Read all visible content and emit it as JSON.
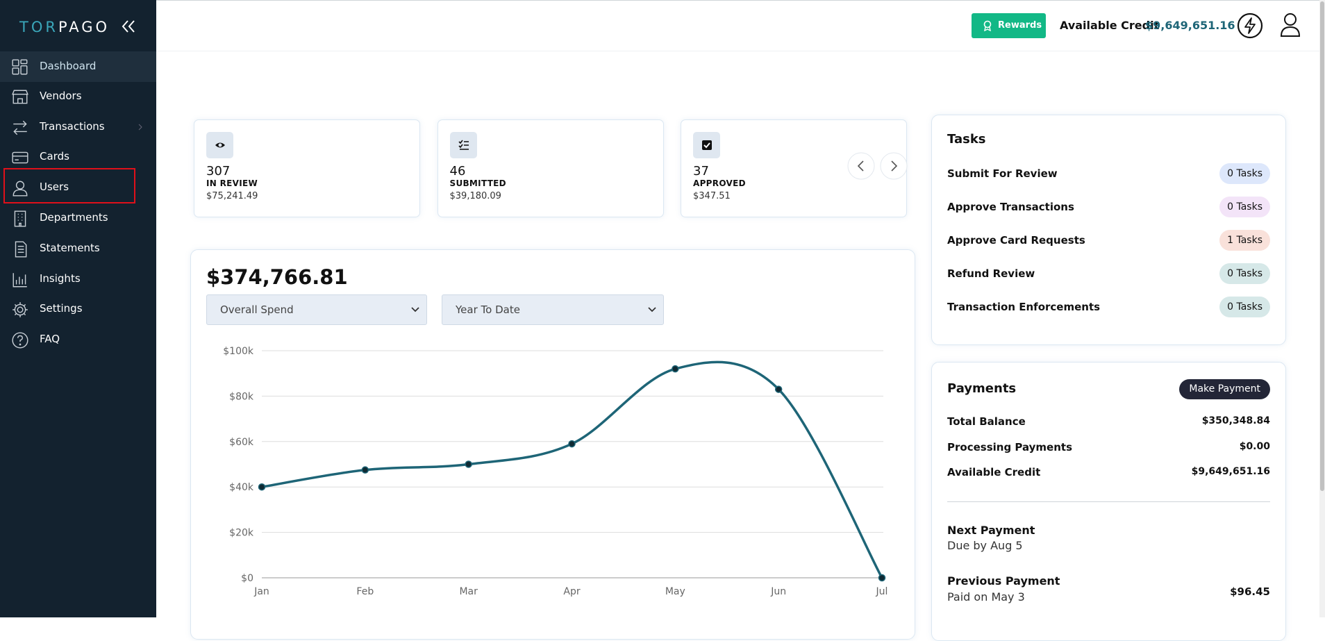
{
  "sidebar": {
    "logo": "TORPAGO",
    "items": [
      {
        "label": "Dashboard",
        "active": true
      },
      {
        "label": "Vendors"
      },
      {
        "label": "Transactions"
      },
      {
        "label": "Cards"
      },
      {
        "label": "Users"
      },
      {
        "label": "Departments"
      },
      {
        "label": "Statements"
      },
      {
        "label": "Insights"
      },
      {
        "label": "Settings"
      },
      {
        "label": "FAQ"
      }
    ]
  },
  "header": {
    "rewards": "Rewards",
    "credit_label": "Available Credit",
    "credit_value": "$9,649,651.16"
  },
  "summary_cards": [
    {
      "count": "307",
      "label": "IN REVIEW",
      "amount": "$75,241.49"
    },
    {
      "count": "46",
      "label": "SUBMITTED",
      "amount": "$39,180.09"
    },
    {
      "count": "37",
      "label": "APPROVED",
      "amount": "$347.51"
    }
  ],
  "spend_panel": {
    "total": "$374,766.81",
    "filters": [
      "Overall Spend",
      "Year To Date"
    ]
  },
  "chart_data": {
    "type": "line",
    "categories": [
      "Jan",
      "Feb",
      "Mar",
      "Apr",
      "May",
      "Jun",
      "Jul"
    ],
    "values": [
      40000,
      47500,
      50000,
      59000,
      92000,
      83000,
      0
    ],
    "color": "#1e6577",
    "ylim": [
      0,
      100000
    ],
    "yticks": [
      {
        "value": 0,
        "label": "$0"
      },
      {
        "value": 20000,
        "label": "$20k"
      },
      {
        "value": 40000,
        "label": "$40k"
      },
      {
        "value": 60000,
        "label": "$60k"
      },
      {
        "value": 80000,
        "label": "$80k"
      },
      {
        "value": 100000,
        "label": "$100k"
      }
    ],
    "grid": true
  },
  "tasks": {
    "title": "Tasks",
    "rows": [
      {
        "name": "Submit For Review",
        "count": "0 Tasks",
        "color": "#dde7fb"
      },
      {
        "name": "Approve Transactions",
        "count": "0 Tasks",
        "color": "#f3e4f8"
      },
      {
        "name": "Approve Card Requests",
        "count": "1 Tasks",
        "color": "#f9e1da"
      },
      {
        "name": "Refund Review",
        "count": "0 Tasks",
        "color": "#d6e8e8"
      },
      {
        "name": "Transaction Enforcements",
        "count": "0 Tasks",
        "color": "#d6e8e8"
      }
    ]
  },
  "payments": {
    "title": "Payments",
    "button": "Make Payment",
    "rows": [
      {
        "label": "Total Balance",
        "value": "$350,348.84"
      },
      {
        "label": "Processing Payments",
        "value": "$0.00"
      },
      {
        "label": "Available Credit",
        "value": "$9,649,651.16"
      }
    ],
    "next": {
      "title": "Next Payment",
      "subtitle": "Due by Aug 5"
    },
    "previous": {
      "title": "Previous Payment",
      "subtitle": "Paid on May 3",
      "amount": "$96.45"
    }
  }
}
